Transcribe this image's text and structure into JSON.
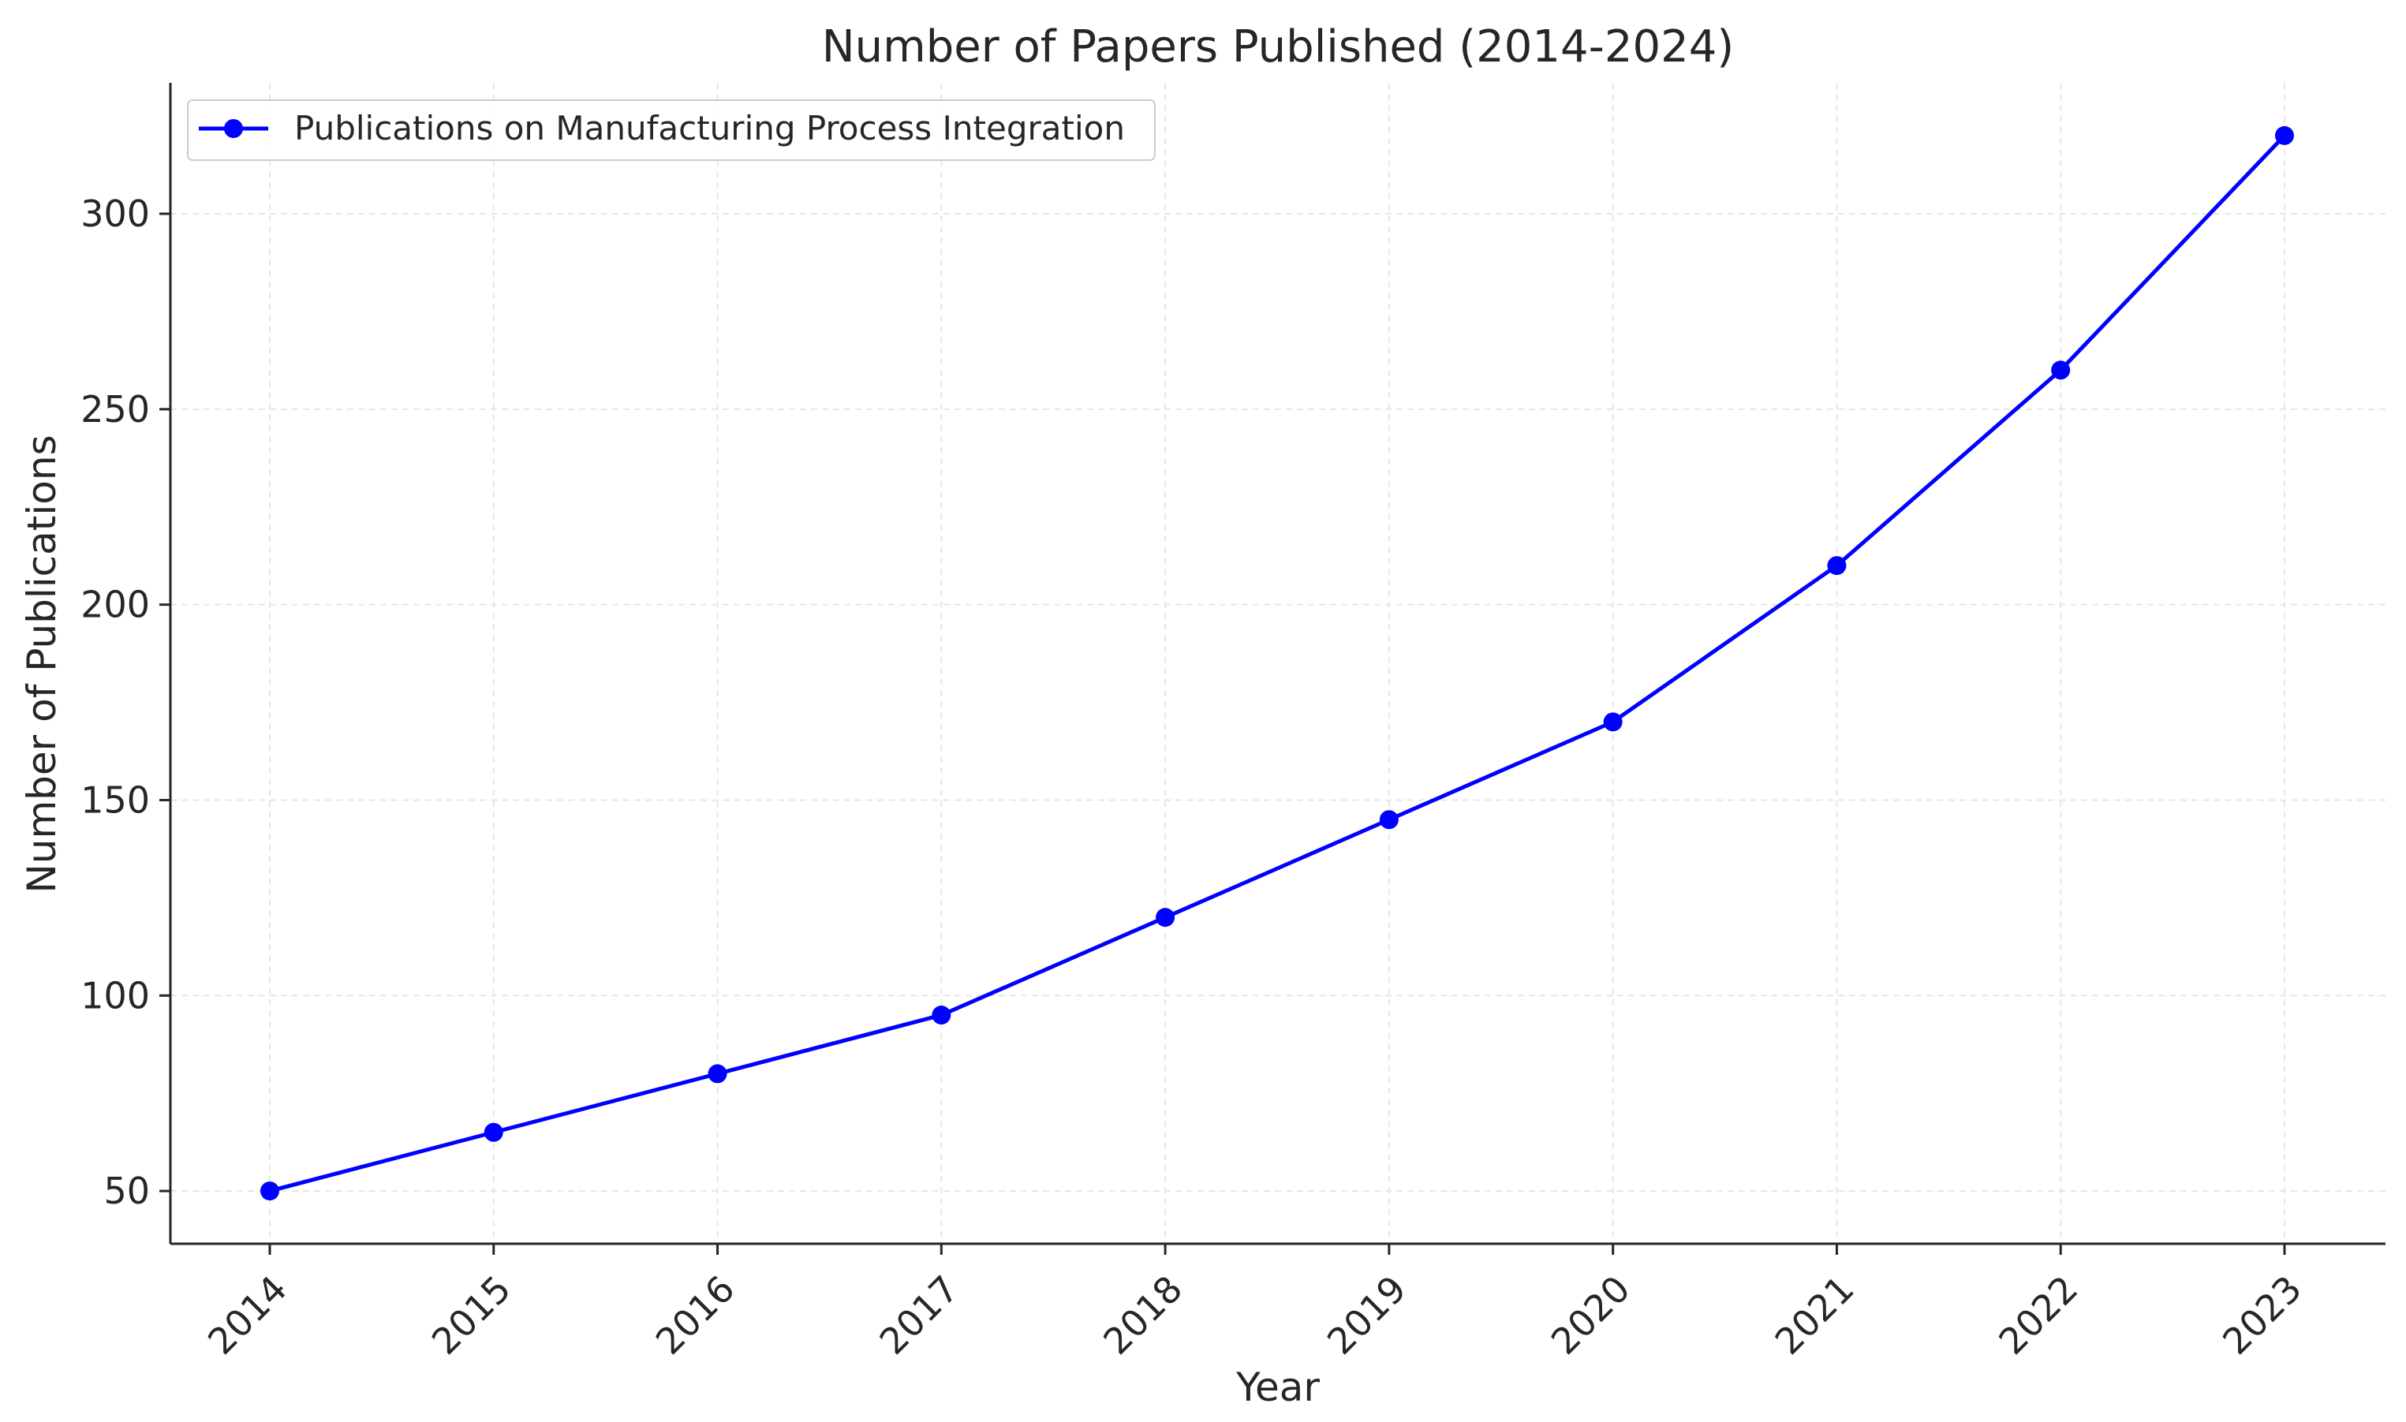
{
  "chart_data": {
    "type": "line",
    "title": "Number of Papers Published (2014-2024)",
    "xlabel": "Year",
    "ylabel": "Number of Publications",
    "categories": [
      "2014",
      "2015",
      "2016",
      "2017",
      "2018",
      "2019",
      "2020",
      "2021",
      "2022",
      "2023"
    ],
    "series": [
      {
        "name": "Publications on Manufacturing Process Integration",
        "values": [
          50,
          65,
          80,
          95,
          120,
          145,
          170,
          210,
          260,
          320
        ],
        "color": "#0000ff",
        "marker": "circle"
      }
    ],
    "ylim": [
      36.5,
      333.5
    ],
    "yticks": [
      50,
      100,
      150,
      200,
      250,
      300
    ],
    "grid": true,
    "legend_position": "top-left"
  }
}
